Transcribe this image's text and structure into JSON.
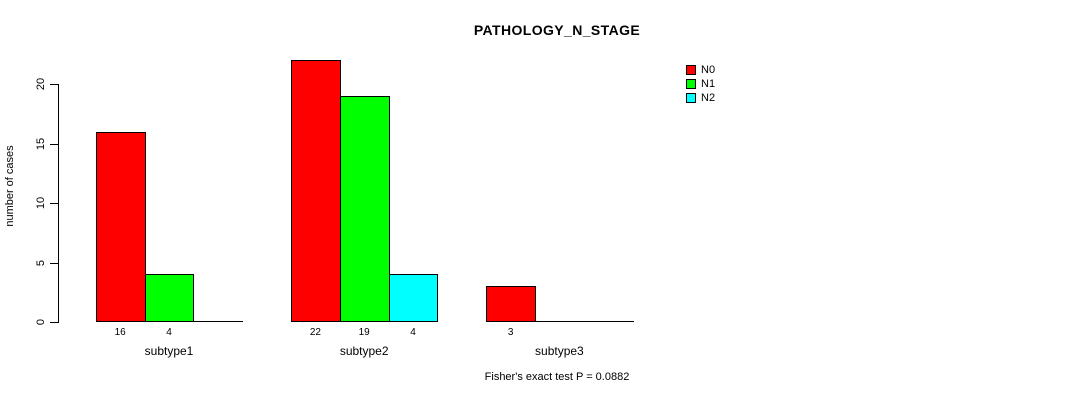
{
  "title": "PATHOLOGY_N_STAGE",
  "caption": "Fisher's exact test P = 0.0882",
  "y_axis": {
    "label": "number of cases"
  },
  "chart_data": {
    "type": "bar",
    "title": "PATHOLOGY_N_STAGE",
    "xlabel": "",
    "ylabel": "number of cases",
    "categories": [
      "subtype1",
      "subtype2",
      "subtype3"
    ],
    "series": [
      {
        "name": "N0",
        "color": "#FF0000",
        "values": [
          16,
          22,
          3
        ]
      },
      {
        "name": "N1",
        "color": "#00FF00",
        "values": [
          4,
          19,
          0
        ]
      },
      {
        "name": "N2",
        "color": "#00FFFF",
        "values": [
          0,
          4,
          0
        ]
      }
    ],
    "bar_value_labels": [
      [
        "16",
        "4",
        ""
      ],
      [
        "22",
        "19",
        "4"
      ],
      [
        "3",
        "",
        ""
      ]
    ],
    "yticks": [
      0,
      5,
      10,
      15,
      20
    ],
    "ylim": [
      0,
      22
    ],
    "grid": false,
    "legend_position": "top-right",
    "annotation": "Fisher's exact test P = 0.0882"
  }
}
